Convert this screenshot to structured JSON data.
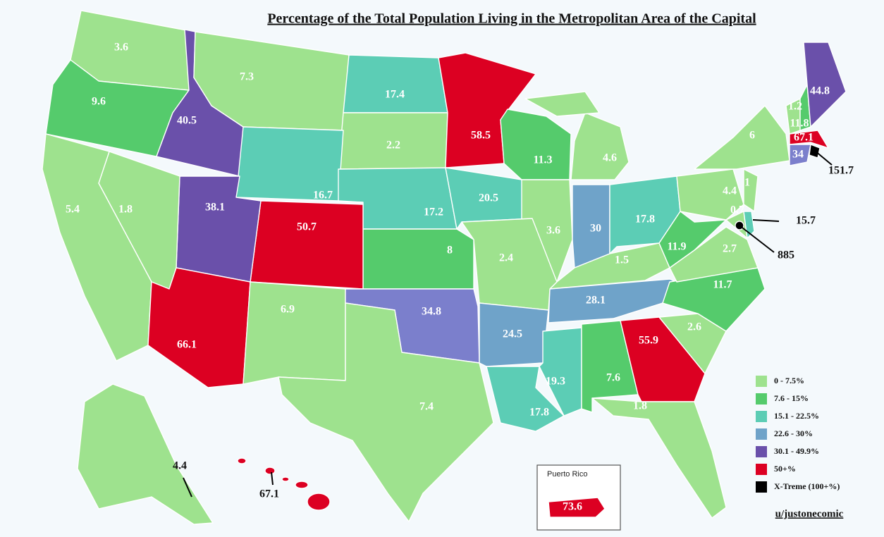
{
  "title": "Percentage of the Total Population Living in the Metropolitan Area of the Capital",
  "regions": [
    {
      "value": 3.6,
      "color": "#9ee28e"
    },
    {
      "value": 9.6,
      "color": "#55cb6c"
    },
    {
      "value": 40.5,
      "color": "#6a50aa"
    },
    {
      "value": 7.3,
      "color": "#9ee28e"
    },
    {
      "value": 17.4,
      "color": "#5ccdb5"
    },
    {
      "value": 2.2,
      "color": "#9ee28e"
    },
    {
      "value": 16.7,
      "color": "#5ccdb5"
    },
    {
      "value": 58.5,
      "color": "#dc0022"
    },
    {
      "value": 11.3,
      "color": "#55cb6c"
    },
    {
      "value": 4.6,
      "color": "#9ee28e"
    },
    {
      "value": 17.2,
      "color": "#5ccdb5"
    },
    {
      "value": 20.5,
      "color": "#5ccdb5"
    },
    {
      "value": 3.6,
      "color": "#9ee28e"
    },
    {
      "value": 30,
      "color": "#6fa3c9"
    },
    {
      "value": 17.8,
      "color": "#5ccdb5"
    },
    {
      "value": 1.5,
      "color": "#9ee28e"
    },
    {
      "value": 28.1,
      "color": "#6fa3c9"
    },
    {
      "value": 2.4,
      "color": "#9ee28e"
    },
    {
      "value": 8,
      "color": "#55cb6c"
    },
    {
      "value": 50.7,
      "color": "#dc0022"
    },
    {
      "value": 38.1,
      "color": "#6a50aa"
    },
    {
      "value": 1.8,
      "color": "#9ee28e"
    },
    {
      "value": 5.4,
      "color": "#9ee28e"
    },
    {
      "value": 66.1,
      "color": "#dc0022"
    },
    {
      "value": 6.9,
      "color": "#9ee28e"
    },
    {
      "value": 34.8,
      "color": "#7b7fcc"
    },
    {
      "value": 7.4,
      "color": "#9ee28e"
    },
    {
      "value": 24.5,
      "color": "#6fa3c9"
    },
    {
      "value": 17.8,
      "color": "#5ccdb5"
    },
    {
      "value": 19.3,
      "color": "#5ccdb5"
    },
    {
      "value": 7.6,
      "color": "#55cb6c"
    },
    {
      "value": 55.9,
      "color": "#dc0022"
    },
    {
      "value": 1.8,
      "color": "#9ee28e"
    },
    {
      "value": 2.6,
      "color": "#9ee28e"
    },
    {
      "value": 11.7,
      "color": "#55cb6c"
    },
    {
      "value": 2.7,
      "color": "#9ee28e"
    },
    {
      "value": 11.9,
      "color": "#55cb6c"
    },
    {
      "value": 4.4,
      "color": "#9ee28e"
    },
    {
      "value": 6,
      "color": "#9ee28e"
    },
    {
      "value": 1,
      "color": "#9ee28e"
    },
    {
      "value": 0.7,
      "color": "#9ee28e"
    },
    {
      "value": 15.7,
      "color": "#5ccdb5"
    },
    {
      "value": 885,
      "color": "#000000"
    },
    {
      "value": 1.2,
      "color": "#9ee28e"
    },
    {
      "value": 11.8,
      "color": "#55cb6c"
    },
    {
      "value": 44.8,
      "color": "#6a50aa"
    },
    {
      "value": 67.1,
      "color": "#dc0022"
    },
    {
      "value": 34,
      "color": "#7b7fcc"
    },
    {
      "value": 151.7,
      "color": "#000000"
    },
    {
      "value": 4.4,
      "color": "#9ee28e"
    },
    {
      "value": 67.1,
      "color": "#dc0022"
    },
    {
      "value": 73.6,
      "color": "#dc0022"
    }
  ],
  "inset_title": "Puerto Rico",
  "legend": [
    {
      "label": "0 - 7.5%",
      "color": "#9ee28e"
    },
    {
      "label": "7.6 - 15%",
      "color": "#55cb6c"
    },
    {
      "label": "15.1 - 22.5%",
      "color": "#5ccdb5"
    },
    {
      "label": "22.6 - 30%",
      "color": "#6fa3c9"
    },
    {
      "label": "30.1 - 49.9%",
      "color": "#6a50aa"
    },
    {
      "label": "50+%",
      "color": "#dc0022"
    },
    {
      "label": "X-Treme (100+%)",
      "color": "#000000"
    }
  ],
  "credit": "u/justonecomic"
}
